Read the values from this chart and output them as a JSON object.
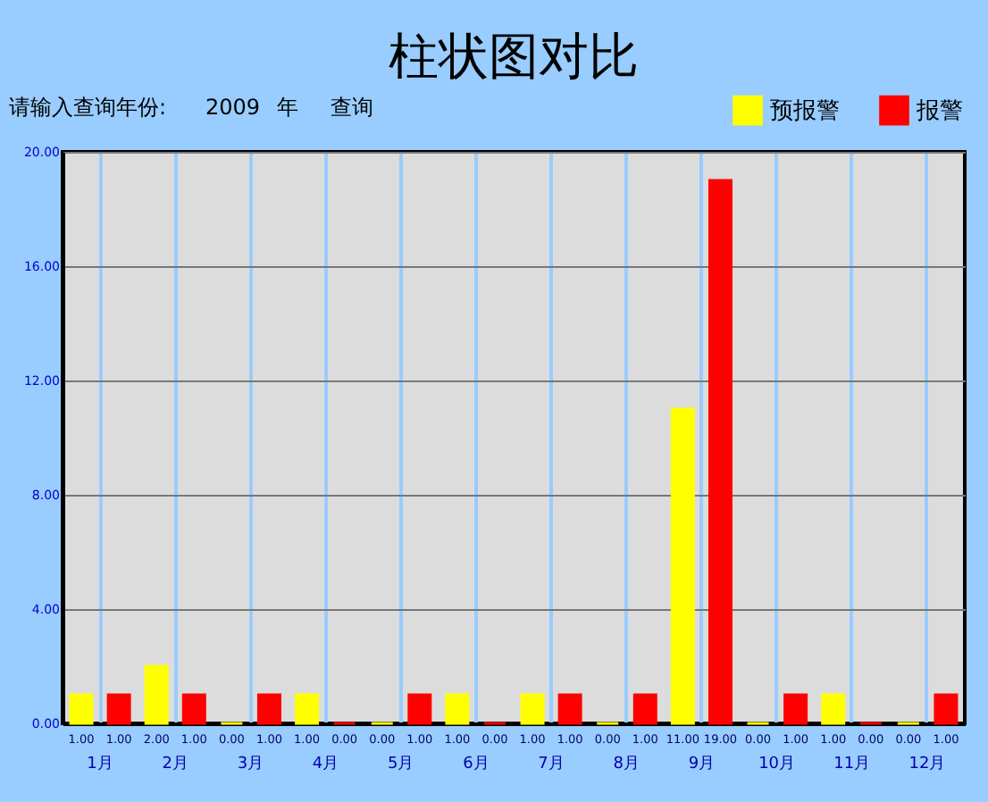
{
  "chart_data": {
    "type": "bar",
    "title": "柱状图对比",
    "categories": [
      "1月",
      "2月",
      "3月",
      "4月",
      "5月",
      "6月",
      "7月",
      "8月",
      "9月",
      "10月",
      "11月",
      "12月"
    ],
    "series": [
      {
        "name": "预报警",
        "color": "#ffff00",
        "values": [
          1,
          2,
          0,
          1,
          0,
          1,
          1,
          0,
          11,
          0,
          1,
          0
        ],
        "value_labels": [
          "1.00",
          "2.00",
          "0.00",
          "1.00",
          "0.00",
          "1.00",
          "1.00",
          "0.00",
          "11.00",
          "0.00",
          "1.00",
          "0.00"
        ]
      },
      {
        "name": "报警",
        "color": "#ff0000",
        "values": [
          1,
          1,
          1,
          0,
          1,
          0,
          1,
          1,
          19,
          1,
          0,
          1
        ],
        "value_labels": [
          "1.00",
          "1.00",
          "1.00",
          "0.00",
          "1.00",
          "0.00",
          "1.00",
          "1.00",
          "19.00",
          "1.00",
          "0.00",
          "1.00"
        ]
      }
    ],
    "ylim": [
      0,
      20
    ],
    "yticks": [
      {
        "value": 0,
        "label": "0.00"
      },
      {
        "value": 4,
        "label": "4.00"
      },
      {
        "value": 8,
        "label": "8.00"
      },
      {
        "value": 12,
        "label": "12.00"
      },
      {
        "value": 16,
        "label": "16.00"
      },
      {
        "value": 20,
        "label": "20.00"
      }
    ],
    "grid": true,
    "legend": "top right",
    "annotations": [
      "请输入查询年份:",
      "2009",
      "年",
      "查询"
    ]
  }
}
